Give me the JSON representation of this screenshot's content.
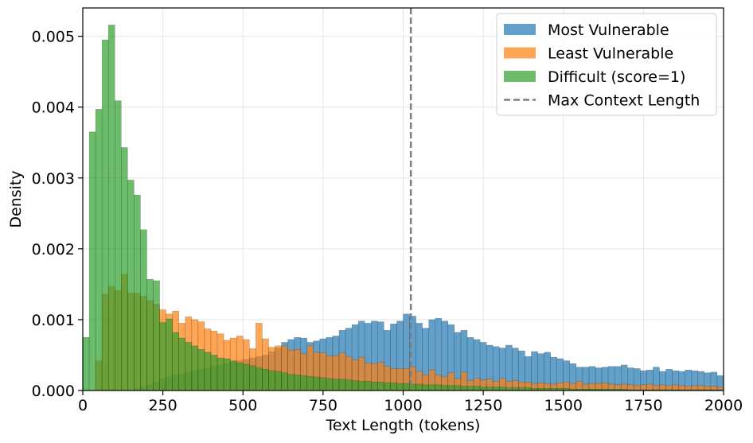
{
  "chart_data": {
    "type": "histogram",
    "title": "",
    "xlabel": "Text Length (tokens)",
    "ylabel": "Density",
    "xlim": [
      0,
      2000
    ],
    "ylim": [
      0,
      0.0054
    ],
    "grid": true,
    "legend_position": "top-right",
    "bin_width": 20,
    "xticks": [
      0,
      250,
      500,
      750,
      1000,
      1250,
      1500,
      1750,
      2000
    ],
    "xtick_labels": [
      "0",
      "250",
      "500",
      "750",
      "1000",
      "1250",
      "1500",
      "1750",
      "2000"
    ],
    "yticks": [
      0,
      0.001,
      0.002,
      0.003,
      0.004,
      0.005
    ],
    "ytick_labels": [
      "0.000",
      "0.001",
      "0.002",
      "0.003",
      "0.004",
      "0.005"
    ],
    "vline": {
      "x": 1024,
      "label": "Max Context Length",
      "color": "#7f7f7f",
      "style": "dashed"
    },
    "series": [
      {
        "name": "Most Vulnerable",
        "color": "#1f77b4",
        "bin_starts": [
          20,
          40,
          60,
          80,
          100,
          120,
          140,
          160,
          180,
          200,
          220,
          240,
          260,
          280,
          300,
          320,
          340,
          360,
          380,
          400,
          420,
          440,
          460,
          480,
          500,
          520,
          540,
          560,
          580,
          600,
          620,
          640,
          660,
          680,
          700,
          720,
          740,
          760,
          780,
          800,
          820,
          840,
          860,
          880,
          900,
          920,
          940,
          960,
          980,
          1000,
          1020,
          1040,
          1060,
          1080,
          1100,
          1120,
          1140,
          1160,
          1180,
          1200,
          1220,
          1240,
          1260,
          1280,
          1300,
          1320,
          1340,
          1360,
          1380,
          1400,
          1420,
          1440,
          1460,
          1480,
          1500,
          1520,
          1540,
          1560,
          1580,
          1600,
          1620,
          1640,
          1660,
          1680,
          1700,
          1720,
          1740,
          1760,
          1780,
          1800,
          1820,
          1840,
          1860,
          1880,
          1900,
          1920,
          1940,
          1960,
          1980
        ],
        "values": [
          0.0,
          0.0,
          0.0,
          0.0,
          0.0,
          0.0,
          0.0,
          3e-05,
          5e-05,
          8e-05,
          0.00012,
          0.00016,
          0.00019,
          0.00022,
          0.00024,
          0.00026,
          0.00028,
          0.0003,
          0.00032,
          0.00034,
          0.00036,
          0.00038,
          0.0004,
          0.00042,
          0.00044,
          0.00046,
          0.00048,
          0.0005,
          0.00055,
          0.0006,
          0.00068,
          0.00072,
          0.00075,
          0.00074,
          0.00068,
          0.0007,
          0.00073,
          0.00075,
          0.00077,
          0.00085,
          0.00088,
          0.00093,
          0.00098,
          0.00095,
          0.00098,
          0.00097,
          0.00085,
          0.00094,
          0.00098,
          0.00108,
          0.00105,
          0.00095,
          0.00088,
          0.001,
          0.00102,
          0.00098,
          0.00093,
          0.00082,
          0.00085,
          0.00075,
          0.00072,
          0.00068,
          0.00064,
          0.00062,
          0.0006,
          0.00064,
          0.0006,
          0.00056,
          0.00048,
          0.00055,
          0.00052,
          0.00054,
          0.00047,
          0.00045,
          0.00042,
          0.00038,
          0.00033,
          0.00033,
          0.00034,
          0.00032,
          0.00033,
          0.00034,
          0.00034,
          0.00036,
          0.00032,
          0.00031,
          0.00028,
          0.00029,
          0.00033,
          0.00027,
          0.0003,
          0.00028,
          0.00027,
          0.00029,
          0.00028,
          0.00027,
          0.00025,
          0.00026,
          0.00021,
          0.00024
        ]
      },
      {
        "name": "Least Vulnerable",
        "color": "#ff7f0e",
        "bin_starts": [
          20,
          40,
          60,
          80,
          100,
          120,
          140,
          160,
          180,
          200,
          220,
          240,
          260,
          280,
          300,
          320,
          340,
          360,
          380,
          400,
          420,
          440,
          460,
          480,
          500,
          520,
          540,
          560,
          580,
          600,
          620,
          640,
          660,
          680,
          700,
          720,
          740,
          760,
          780,
          800,
          820,
          840,
          860,
          880,
          900,
          920,
          940,
          960,
          980,
          1000,
          1020,
          1040,
          1060,
          1080,
          1100,
          1120,
          1140,
          1160,
          1180,
          1200,
          1220,
          1240,
          1260,
          1280,
          1300,
          1320,
          1340,
          1360,
          1380,
          1400,
          1420,
          1440,
          1460,
          1480,
          1500,
          1520,
          1540,
          1560,
          1580,
          1600,
          1620,
          1640,
          1660,
          1680,
          1700,
          1720,
          1740,
          1760,
          1780,
          1800,
          1820,
          1840,
          1860,
          1880,
          1900,
          1920,
          1940,
          1960,
          1980
        ],
        "values": [
          0.0,
          0.00042,
          0.00136,
          0.00147,
          0.00141,
          0.00164,
          0.00138,
          0.00137,
          0.00133,
          0.00127,
          0.00122,
          0.00114,
          0.00108,
          0.00112,
          0.00095,
          0.00104,
          0.001,
          0.00097,
          0.00087,
          0.00084,
          0.0008,
          0.00071,
          0.00074,
          0.00077,
          0.00072,
          0.00059,
          0.00095,
          0.00073,
          0.00061,
          0.00063,
          0.00063,
          0.00057,
          0.00058,
          0.00052,
          0.00063,
          0.00054,
          0.00053,
          0.00049,
          0.00049,
          0.00053,
          0.00048,
          0.00043,
          0.00047,
          0.00039,
          0.00038,
          0.0004,
          0.00034,
          0.00031,
          0.00031,
          0.00031,
          0.00033,
          0.00027,
          0.00022,
          0.00029,
          0.00022,
          0.0002,
          0.00025,
          0.00017,
          0.00026,
          0.00014,
          0.00017,
          0.00015,
          0.00016,
          0.00013,
          0.00017,
          0.00013,
          0.00014,
          0.00012,
          0.00012,
          0.0001,
          0.00011,
          0.0001,
          9e-05,
          0.00011,
          0.00012,
          0.0001,
          0.00013,
          9e-05,
          0.0001,
          0.0001,
          0.00011,
          9e-05,
          8e-05,
          9e-05,
          8e-05,
          7e-05,
          8e-05,
          9e-05,
          7e-05,
          8e-05,
          7e-05,
          8e-05,
          7e-05,
          6e-05,
          7e-05,
          7e-05,
          6e-05,
          6e-05,
          5e-05,
          6e-05
        ]
      },
      {
        "name": "Difficult (score=1)",
        "color": "#2ca02c",
        "bin_starts": [
          0,
          20,
          40,
          60,
          80,
          100,
          120,
          140,
          160,
          180,
          200,
          220,
          240,
          260,
          280,
          300,
          320,
          340,
          360,
          380,
          400,
          420,
          440,
          460,
          480,
          500,
          520,
          540,
          560,
          580,
          600,
          620,
          640,
          660,
          680,
          700,
          720,
          740,
          760,
          780,
          800,
          820,
          840,
          860,
          880,
          900,
          920,
          940,
          960,
          980,
          1000,
          1020,
          1040,
          1060,
          1080,
          1100,
          1120,
          1140,
          1160,
          1180,
          1200,
          1220,
          1240,
          1260,
          1280,
          1300,
          1320,
          1340,
          1360,
          1380,
          1400,
          1420,
          1440,
          1460,
          1480,
          1500,
          1520,
          1540,
          1560,
          1580,
          1600,
          1620,
          1640,
          1660,
          1680,
          1700,
          1720,
          1740,
          1760,
          1780,
          1800,
          1820,
          1840,
          1860,
          1880,
          1900,
          1920,
          1940,
          1960,
          1980
        ],
        "values": [
          0.00075,
          0.00365,
          0.00397,
          0.00495,
          0.00516,
          0.00409,
          0.00343,
          0.00297,
          0.00276,
          0.00227,
          0.00157,
          0.00155,
          0.00096,
          0.00101,
          0.00082,
          0.00074,
          0.00068,
          0.00063,
          0.00058,
          0.00054,
          0.0005,
          0.00046,
          0.00045,
          0.00042,
          0.00039,
          0.00037,
          0.00035,
          0.00032,
          0.0003,
          0.00028,
          0.00027,
          0.00025,
          0.00023,
          0.00022,
          0.00021,
          0.0002,
          0.00019,
          0.00018,
          0.00017,
          0.00016,
          0.00016,
          0.00015,
          0.00014,
          0.00013,
          0.00013,
          0.00012,
          0.00012,
          0.00011,
          0.00011,
          0.0001,
          0.0001,
          9e-05,
          9e-05,
          8e-05,
          8e-05,
          8e-05,
          7e-05,
          7e-05,
          7e-05,
          6e-05,
          6e-05,
          6e-05,
          5e-05,
          5e-05,
          5e-05,
          5e-05,
          4e-05,
          4e-05,
          4e-05,
          4e-05,
          3e-05,
          3e-05,
          3e-05,
          3e-05,
          3e-05,
          3e-05,
          2e-05,
          2e-05,
          2e-05,
          2e-05,
          2e-05,
          2e-05,
          2e-05,
          2e-05,
          2e-05,
          1e-05,
          1e-05,
          1e-05,
          1e-05,
          1e-05,
          1e-05,
          1e-05,
          1e-05,
          1e-05,
          1e-05,
          1e-05,
          1e-05,
          1e-05,
          1e-05,
          1e-05
        ]
      }
    ]
  }
}
